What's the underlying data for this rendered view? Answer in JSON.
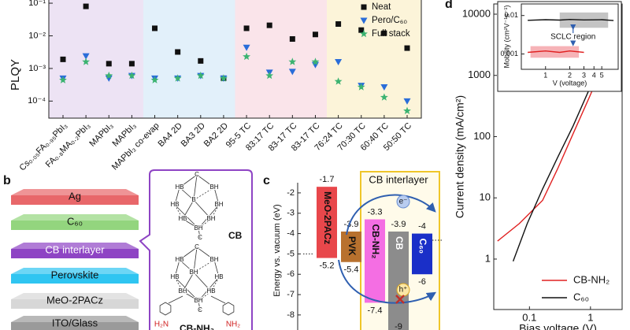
{
  "chart_data": [
    {
      "type": "scatter",
      "y_label": "PLQY",
      "log_y": true,
      "categories": [
        "Cs₀.₀₅FA₀.₉₅PbI₃",
        "FA₀.₈MA₀.₂PbI₃",
        "MAPbI₃",
        "MAPbI₃",
        "MAPbI₃ co-evap",
        "BA4 2D",
        "BA3 2D",
        "BA2 2D",
        "95-5 TC",
        "83:17 TC",
        "83-17 TC",
        "83-17 TC",
        "76:24 TC",
        "70:30 TC",
        "60:40 TC",
        "50:50 TC"
      ],
      "series": [
        {
          "name": "Neat",
          "color": "#111111",
          "marker": "square",
          "values": [
            0.0019,
            0.08,
            0.0014,
            0.0014,
            0.017,
            0.0032,
            0.0017,
            0.0005,
            0.017,
            0.021,
            0.008,
            0.011,
            0.023,
            0.015,
            0.012,
            0.0042
          ]
        },
        {
          "name": "Pero/C₆₀",
          "color": "#2a6dd9",
          "marker": "triangle-down",
          "values": [
            0.0005,
            0.0024,
            0.0005,
            0.0006,
            0.0005,
            0.0005,
            0.0006,
            0.0005,
            0.0044,
            0.00076,
            0.0008,
            0.0013,
            0.0016,
            0.0003,
            0.00027,
            0.0001
          ]
        },
        {
          "name": "Full stack",
          "color": "#3cb371",
          "marker": "star",
          "values": [
            0.00044,
            0.0016,
            0.0006,
            0.0006,
            0.00044,
            0.0005,
            0.0006,
            0.0005,
            0.0023,
            0.0006,
            0.0016,
            0.0016,
            0.0004,
            0.00027,
            0.00013,
            5e-05
          ]
        }
      ],
      "ylim": [
        3e-05,
        0.14
      ],
      "yticks": [
        {
          "value": 0.1,
          "label": "10⁻¹"
        },
        {
          "value": 0.01,
          "label": "10⁻²"
        },
        {
          "value": 0.001,
          "label": "10⁻³"
        },
        {
          "value": 0.0001,
          "label": "10⁻⁴"
        }
      ],
      "legend": "top-right"
    },
    {
      "type": "floating_bar",
      "panel": "c",
      "title": "CB interlayer",
      "y_label": "Energy vs. vacuum (eV)",
      "categories": [
        "MeO-2PACz",
        "PVK",
        "CB-NH₂",
        "CB",
        "C₆₀"
      ],
      "top": [
        -1.7,
        -3.9,
        -3.3,
        -3.9,
        -4.0
      ],
      "bottom": [
        -5.2,
        -5.4,
        -7.4,
        -9.0,
        -6.0
      ],
      "colors": [
        "#e8474b",
        "#b8712e",
        "#f46ee3",
        "#8c8c8c",
        "#1a2fc8"
      ],
      "ylim": [
        -8.74,
        -1.5
      ],
      "yticks": [
        -2,
        -3,
        -4,
        -5,
        -6,
        -7,
        -8
      ],
      "annotations": [
        "e⁻",
        "h⁺"
      ]
    },
    {
      "type": "line",
      "panel": "d",
      "y_label": "Current density (mA/cm²)",
      "x_label": "Bias voltage (V)",
      "log_x": true,
      "log_y": true,
      "series": [
        {
          "name": "CB-NH₂",
          "color": "#e02020",
          "x": [
            0.03,
            0.068,
            0.164,
            0.29,
            0.52,
            0.94,
            1.46,
            1.96
          ],
          "values": [
            1.97,
            3.8,
            9.1,
            30,
            112,
            420,
            1160,
            2300
          ]
        },
        {
          "name": "C₆₀",
          "color": "#111111",
          "x": [
            0.054,
            0.092,
            0.164,
            0.29,
            0.52,
            0.94,
            1.68,
            2.1
          ],
          "values": [
            0.92,
            3.8,
            14,
            46,
            150,
            570,
            2900,
            6600
          ]
        }
      ],
      "xlim": [
        0.026,
        3.3
      ],
      "ylim": [
        0.15,
        14700
      ],
      "xticks": [
        0.1,
        1
      ],
      "yticks": [
        1,
        10,
        100,
        1000,
        10000
      ]
    },
    {
      "type": "line",
      "y_label": "Mobility (cm²V⁻¹s⁻¹)",
      "x_label": "V (voltage)",
      "log_x": true,
      "log_y": true,
      "annotation": "SCLC region",
      "series": [
        {
          "color": "#111111",
          "x": [
            0.6,
            1,
            1.5,
            2,
            3,
            5,
            7
          ],
          "values": [
            0.0075,
            0.0078,
            0.0076,
            0.0079,
            0.0077,
            0.0078,
            0.0074
          ]
        },
        {
          "color": "#e02020",
          "x": [
            0.6,
            1,
            1.5,
            2,
            3
          ],
          "values": [
            0.0011,
            0.0012,
            0.0011,
            0.0012,
            0.0011
          ]
        }
      ],
      "xlim": [
        0.5,
        8
      ],
      "ylim": [
        0.0004,
        0.02
      ],
      "xticks": [
        1,
        2,
        3,
        4,
        5
      ],
      "yticks": [
        0.001,
        0.01
      ]
    }
  ],
  "diagram": {
    "panel": "b",
    "layers": [
      "Ag",
      "C₆₀",
      "CB interlayer",
      "Perovskite",
      "MeO-2PACz",
      "ITO/Glass"
    ],
    "molecules": [
      {
        "name": "CB",
        "atoms": [
          "C",
          "HB",
          "BH",
          "HB",
          "B",
          "BH",
          "HB",
          "BH",
          "BH",
          "C"
        ]
      },
      {
        "name": "CB-NH₂",
        "atoms": [
          "C",
          "HB",
          "BH",
          "HB",
          "BH",
          "HB",
          "BH",
          "HB",
          "BH",
          "C"
        ],
        "substituents": [
          "H₂N",
          "NH₂"
        ]
      }
    ]
  }
}
